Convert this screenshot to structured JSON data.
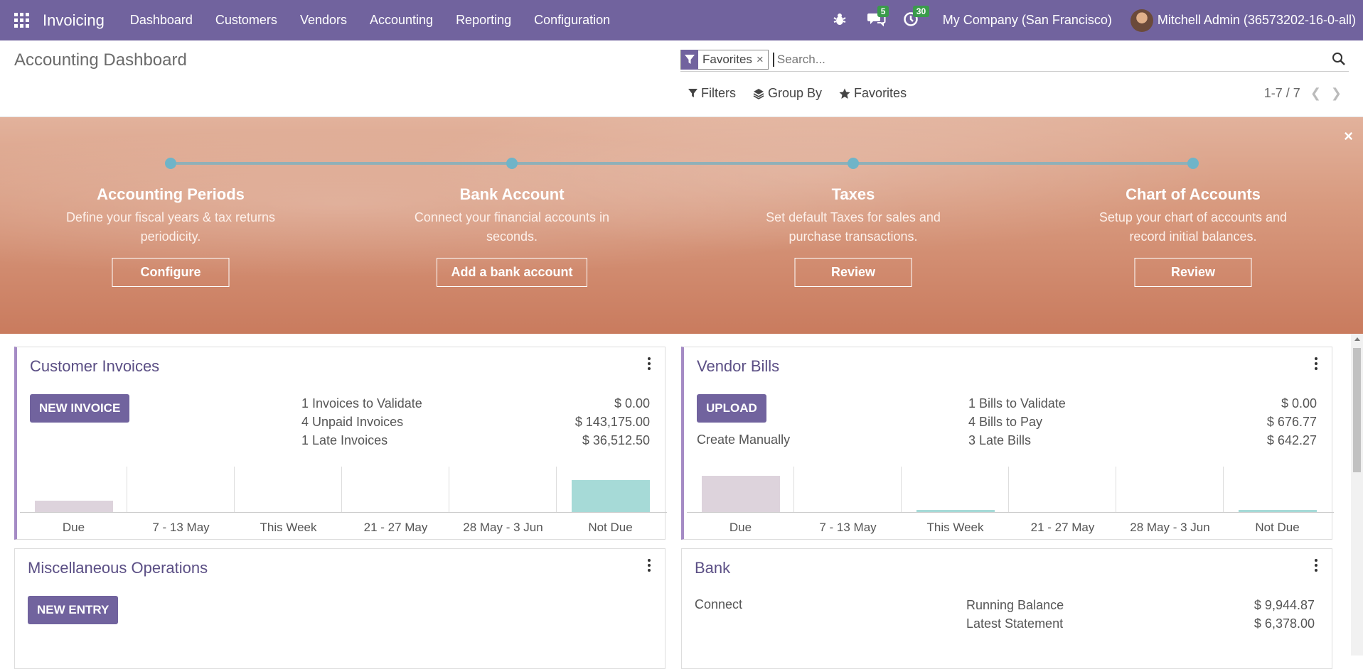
{
  "navbar": {
    "app_name": "Invoicing",
    "menu": [
      "Dashboard",
      "Customers",
      "Vendors",
      "Accounting",
      "Reporting",
      "Configuration"
    ],
    "messages_count": "5",
    "activities_count": "30",
    "company": "My Company (San Francisco)",
    "user": "Mitchell Admin (36573202-16-0-all)"
  },
  "control_panel": {
    "title": "Accounting Dashboard",
    "facet_label": "Favorites",
    "facet_remove": "×",
    "search_placeholder": "Search...",
    "filters_label": "Filters",
    "groupby_label": "Group By",
    "favorites_label": "Favorites",
    "pager": "1-7 / 7"
  },
  "banner": {
    "close": "×",
    "steps": [
      {
        "title": "Accounting Periods",
        "desc": "Define your fiscal years & tax returns periodicity.",
        "button": "Configure"
      },
      {
        "title": "Bank Account",
        "desc": "Connect your financial accounts in seconds.",
        "button": "Add a bank account"
      },
      {
        "title": "Taxes",
        "desc": "Set default Taxes for sales and purchase transactions.",
        "button": "Review"
      },
      {
        "title": "Chart of Accounts",
        "desc": "Setup your chart of accounts and record initial balances.",
        "button": "Review"
      }
    ]
  },
  "cards": {
    "customer_invoices": {
      "title": "Customer Invoices",
      "button": "NEW INVOICE",
      "stats": [
        {
          "label": "1 Invoices to Validate",
          "value": "$ 0.00"
        },
        {
          "label": "4 Unpaid Invoices",
          "value": "$ 143,175.00"
        },
        {
          "label": "1 Late Invoices",
          "value": "$ 36,512.50"
        }
      ],
      "chart": {
        "categories": [
          "Due",
          "7 - 13 May",
          "This Week",
          "21 - 27 May",
          "28 May - 3 Jun",
          "Not Due"
        ],
        "values": [
          0.25,
          0,
          0,
          0,
          0,
          0.7
        ],
        "colors": [
          "#ddd3dc",
          "#ddd3dc",
          "#ddd3dc",
          "#ddd3dc",
          "#ddd3dc",
          "#a6dad7"
        ]
      }
    },
    "vendor_bills": {
      "title": "Vendor Bills",
      "button": "UPLOAD",
      "secondary": "Create Manually",
      "stats": [
        {
          "label": "1 Bills to Validate",
          "value": "$ 0.00"
        },
        {
          "label": "4 Bills to Pay",
          "value": "$ 676.77"
        },
        {
          "label": "3 Late Bills",
          "value": "$ 642.27"
        }
      ],
      "chart": {
        "categories": [
          "Due",
          "7 - 13 May",
          "This Week",
          "21 - 27 May",
          "28 May - 3 Jun",
          "Not Due"
        ],
        "values": [
          0.8,
          0,
          0.04,
          0,
          0,
          0.04
        ],
        "colors": [
          "#ddd3dc",
          "#ddd3dc",
          "#a6dad7",
          "#ddd3dc",
          "#ddd3dc",
          "#a6dad7"
        ]
      }
    },
    "misc": {
      "title": "Miscellaneous Operations",
      "button": "NEW ENTRY"
    },
    "bank": {
      "title": "Bank",
      "secondary": "Connect",
      "stats": [
        {
          "label": "Running Balance",
          "value": "$ 9,944.87"
        },
        {
          "label": "Latest Statement",
          "value": "$ 6,378.00"
        }
      ]
    }
  },
  "colors": {
    "brand": "#71639e",
    "accent": "#a58bc5",
    "badge": "#3a9b4b"
  }
}
